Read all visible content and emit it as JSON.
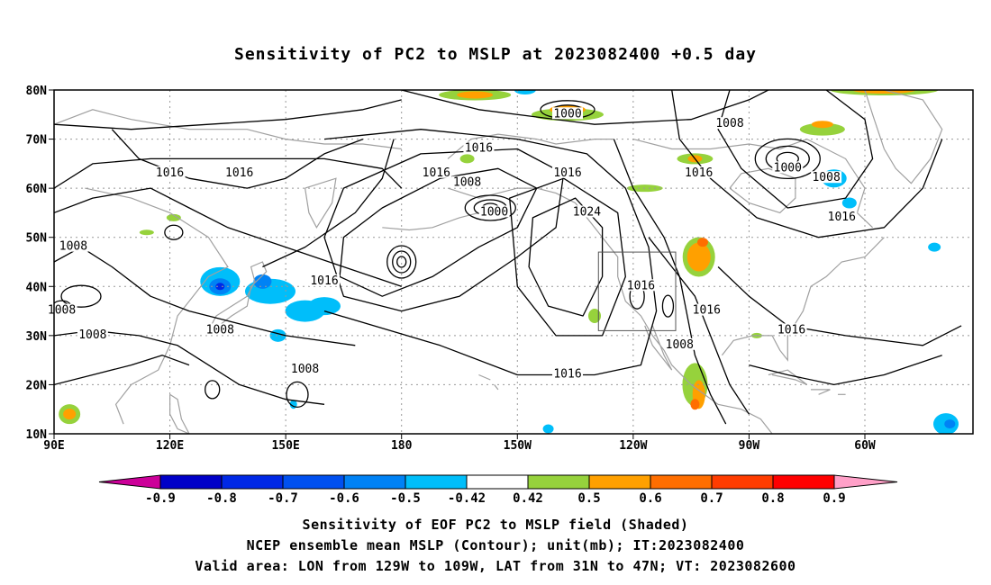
{
  "title": "Sensitivity of PC2 to MSLP at 2023082400 +0.5 day",
  "lat_labels": [
    "80N",
    "70N",
    "60N",
    "50N",
    "40N",
    "30N",
    "20N",
    "10N"
  ],
  "lon_labels": [
    "90E",
    "120E",
    "150E",
    "180",
    "150W",
    "120W",
    "90W",
    "60W"
  ],
  "contour_labels": [
    {
      "text": "1000",
      "lon": -156,
      "lat": 55
    },
    {
      "text": "1000",
      "lon": -137,
      "lat": 75
    },
    {
      "text": "1000",
      "lon": -80,
      "lat": 64
    },
    {
      "text": "1008",
      "lon": -163,
      "lat": 61
    },
    {
      "text": "1008",
      "lon": -95,
      "lat": 73
    },
    {
      "text": "1008",
      "lon": -70,
      "lat": 62
    },
    {
      "text": "1008",
      "lon": 95,
      "lat": 48
    },
    {
      "text": "1008",
      "lon": 92,
      "lat": 35
    },
    {
      "text": "1008",
      "lon": 100,
      "lat": 30
    },
    {
      "text": "1008",
      "lon": 133,
      "lat": 31
    },
    {
      "text": "1008",
      "lon": 155,
      "lat": 23
    },
    {
      "text": "1008",
      "lon": -108,
      "lat": 28
    },
    {
      "text": "1016",
      "lon": 120,
      "lat": 63
    },
    {
      "text": "1016",
      "lon": 138,
      "lat": 63
    },
    {
      "text": "1016",
      "lon": 160,
      "lat": 41
    },
    {
      "text": "1016",
      "lon": -160,
      "lat": 68
    },
    {
      "text": "1016",
      "lon": -171,
      "lat": 63
    },
    {
      "text": "1016",
      "lon": -137,
      "lat": 63
    },
    {
      "text": "1016",
      "lon": -103,
      "lat": 63
    },
    {
      "text": "1016",
      "lon": -118,
      "lat": 40
    },
    {
      "text": "1016",
      "lon": -101,
      "lat": 35
    },
    {
      "text": "1016",
      "lon": -79,
      "lat": 31
    },
    {
      "text": "1016",
      "lon": -66,
      "lat": 54
    },
    {
      "text": "1016",
      "lon": -137,
      "lat": 22
    },
    {
      "text": "1024",
      "lon": -132,
      "lat": 55
    }
  ],
  "colorbar": {
    "labels": [
      "-0.9",
      "-0.8",
      "-0.7",
      "-0.6",
      "-0.5",
      "-0.42",
      "0.42",
      "0.5",
      "0.6",
      "0.7",
      "0.8",
      "0.9"
    ],
    "colors": [
      "#cc0099",
      "#0000c8",
      "#0028e6",
      "#0050f0",
      "#0082f5",
      "#00befa",
      "#ffffff",
      "#96d23c",
      "#ffa000",
      "#ff6e00",
      "#ff3c00",
      "#ff0000",
      "#ffa0c8"
    ]
  },
  "caption_line1": "Sensitivity of EOF PC2 to MSLP field (Shaded)",
  "caption_line2": "NCEP ensemble mean MSLP (Contour); unit(mb); IT:2023082400",
  "caption_line3": "Valid area: LON from 129W to 109W, LAT from 31N to 47N; VT: 2023082600",
  "colors": {
    "negative_light": "#00befa",
    "negative_mid": "#0082f5",
    "negative_dark": "#0028e6",
    "positive_green": "#96d23c",
    "positive_orange": "#ffa000",
    "positive_red": "#ff6e00",
    "coastline": "#a0a0a0",
    "contour": "#000000"
  },
  "valid_area": {
    "lon_min": -129,
    "lon_max": -109,
    "lat_min": 31,
    "lat_max": 47
  }
}
